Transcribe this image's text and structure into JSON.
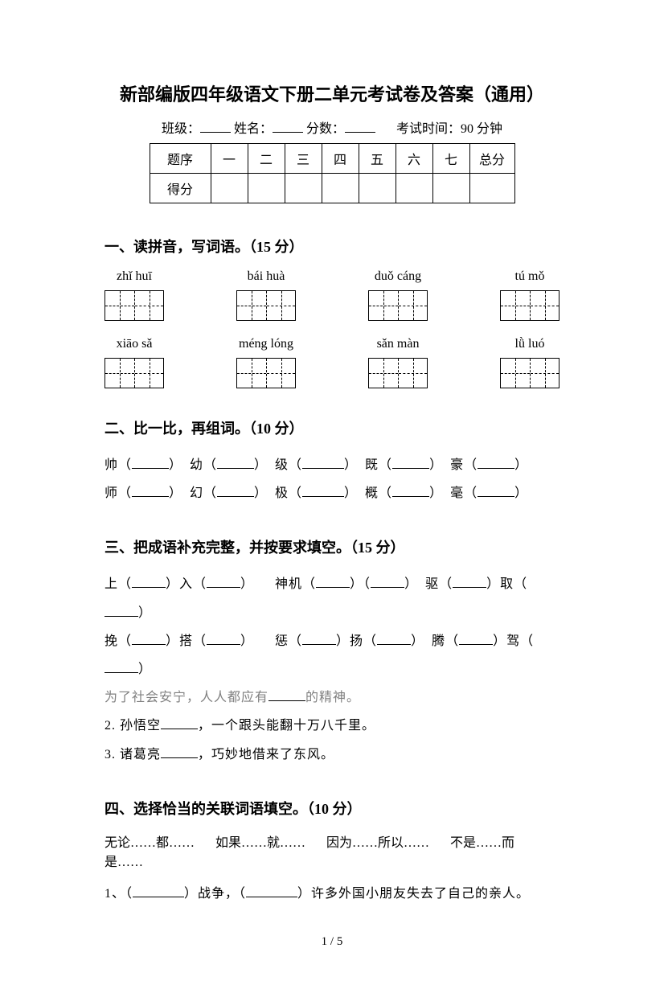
{
  "title": "新部编版四年级语文下册二单元考试卷及答案（通用）",
  "meta": {
    "class_label": "班级：",
    "name_label": "姓名：",
    "score_label": "分数：",
    "time_label": "考试时间：90 分钟"
  },
  "score_table": {
    "row_header": "题序",
    "row_score": "得分",
    "cols": [
      "一",
      "二",
      "三",
      "四",
      "五",
      "六",
      "七"
    ],
    "total": "总分"
  },
  "s1": {
    "head": "一、读拼音，写词语。（15 分）",
    "row1": [
      "zhǐ huī",
      "bái huà",
      "duǒ cáng",
      "tú mǒ"
    ],
    "row2": [
      "xiāo sǎ",
      "méng lóng",
      "sǎn màn",
      "lǜ luó"
    ]
  },
  "s2": {
    "head": "二、比一比，再组词。（10 分）",
    "line1": {
      "a": "帅（",
      "b": "）　幼（",
      "c": "）　级（",
      "d": "）　既（",
      "e": "）　豪（",
      "f": "）"
    },
    "line2": {
      "a": "师（",
      "b": "）　幻（",
      "c": "）　极（",
      "d": "）　概（",
      "e": "）　毫（",
      "f": "）"
    }
  },
  "s3": {
    "head": "三、把成语补充完整，并按要求填空。（15 分）",
    "l1a": "上（",
    "l1b": "）入（",
    "l1c": "）　　神机（",
    "l1d": "）（",
    "l1e": "）　驱（",
    "l1f": "）取（",
    "l1g": "）",
    "l2a": "挽（",
    "l2b": "）搭（",
    "l2c": "）　　惩（",
    "l2d": "）扬（",
    "l2e": "）　腾（",
    "l2f": "）驾（",
    "l2g": "）",
    "l3a": "为了社会安宁，人人都应有",
    "l3b": "的精神。",
    "l4a": "2. 孙悟空",
    "l4b": "，一个跟头能翻十万八千里。",
    "l5a": "3. 诸葛亮",
    "l5b": "，巧妙地借来了东风。"
  },
  "s4": {
    "head": "四、选择恰当的关联词语填空。（10 分）",
    "opts": [
      "无论……都……",
      "如果……就……",
      "因为……所以……",
      "不是……而是……"
    ],
    "q1a": "1、（",
    "q1b": "）战争，（",
    "q1c": "）许多外国小朋友失去了自己的亲人。"
  },
  "footer": "1 / 5"
}
